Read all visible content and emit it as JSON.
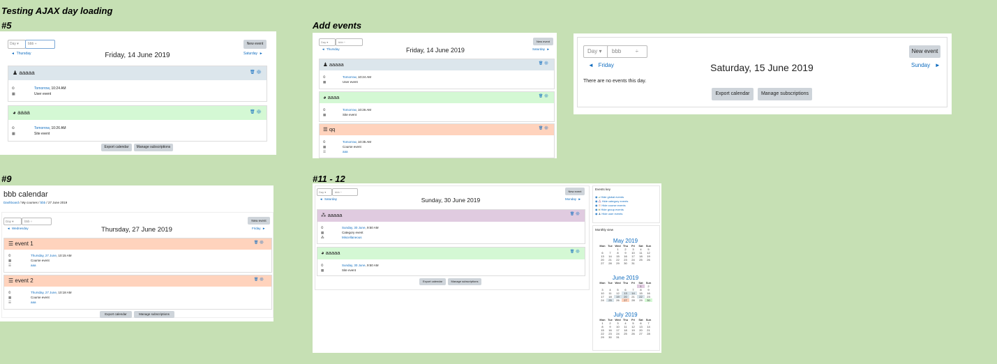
{
  "headers": {
    "testing": "Testing AJAX day loading",
    "n5": "#5",
    "add": "Add events",
    "n9": "#9",
    "n11": "#11 - 12"
  },
  "common": {
    "view": "Day",
    "course": "bbb",
    "new_event": "New event",
    "export": "Export calendar",
    "manage": "Manage subscriptions",
    "prev_arrow": "◄",
    "next_arrow": "►"
  },
  "p1": {
    "prev": "Thursday",
    "next": "Saturday",
    "date": "Friday, 14 June 2019",
    "events": [
      {
        "title": "aaaaa",
        "when_link": "Tomorrow",
        "when_time": ", 10:24 AM",
        "type": "User event"
      },
      {
        "title": "aaaa",
        "when_link": "Tomorrow",
        "when_time": ", 10:26 AM",
        "type": "Site event"
      }
    ]
  },
  "p2": {
    "prev": "Thursday",
    "next": "Saturday",
    "date": "Friday, 14 June 2019",
    "events": [
      {
        "title": "aaaaa",
        "when_link": "Tomorrow",
        "when_time": ", 10:24 AM",
        "type": "User event"
      },
      {
        "title": "aaaa",
        "when_link": "Tomorrow",
        "when_time": ", 10:26 AM",
        "type": "Site event"
      },
      {
        "title": "qq",
        "when_link": "Tomorrow",
        "when_time": ", 10:35 AM",
        "type": "Course event",
        "course": "aaa"
      }
    ]
  },
  "p3": {
    "prev": "Friday",
    "next": "Sunday",
    "date": "Saturday, 15 June 2019",
    "empty": "There are no events this day."
  },
  "p4": {
    "title": "bbb calendar",
    "crumbs": [
      "Dashboard",
      "/",
      "My courses",
      "/",
      "bbb",
      "/",
      "27 June 2019"
    ],
    "prev": "Wednesday",
    "next": "Friday",
    "date": "Thursday, 27 June 2019",
    "events": [
      {
        "title": "event 1",
        "when_link": "Thursday, 27 June",
        "when_time": ", 10:15 AM",
        "type": "Course event",
        "course": "aaa"
      },
      {
        "title": "event 2",
        "when_link": "Thursday, 27 June",
        "when_time": ", 10:18 AM",
        "type": "Course event",
        "course": "aaa"
      }
    ]
  },
  "p5": {
    "prev": "Saturday",
    "next": "Monday",
    "date": "Sunday, 30 June 2019",
    "events": [
      {
        "title": "aaaaa",
        "when_link": "Sunday, 30 June",
        "when_time": ", 9:50 AM",
        "type": "Category event",
        "category": "Miscellaneous"
      },
      {
        "title": "aaaaa",
        "when_link": "Sunday, 30 June",
        "when_time": ", 9:50 AM",
        "type": "Site event"
      }
    ],
    "key": {
      "title": "Events key",
      "items": [
        "Hide global events",
        "Hide category events",
        "Hide course events",
        "Hide group events",
        "Hide user events"
      ]
    },
    "monthly": {
      "title": "Monthly view",
      "days": [
        "Mon",
        "Tue",
        "Wed",
        "Thu",
        "Fri",
        "Sat",
        "Sun"
      ],
      "months": [
        {
          "name": "May 2019",
          "rows": [
            [
              "",
              "",
              "1",
              "2",
              "3",
              "4",
              "5"
            ],
            [
              "6",
              "7",
              "8",
              "9",
              "10",
              "11",
              "12"
            ],
            [
              "13",
              "14",
              "15",
              "16",
              "17",
              "18",
              "19"
            ],
            [
              "20",
              "21",
              "22",
              "23",
              "24",
              "25",
              "26"
            ],
            [
              "27",
              "28",
              "29",
              "30",
              "31",
              "",
              ""
            ]
          ]
        },
        {
          "name": "June 2019",
          "rows": [
            [
              "",
              "",
              "",
              "",
              "",
              "1",
              "2"
            ],
            [
              "3",
              "4",
              "5",
              "6",
              "7",
              "8",
              "9"
            ],
            [
              "10",
              "11",
              "12",
              "13",
              "14",
              "15",
              "16"
            ],
            [
              "17",
              "18",
              "19",
              "20",
              "21",
              "22",
              "23"
            ],
            [
              "24",
              "25",
              "26",
              "27",
              "28",
              "29",
              "30"
            ]
          ]
        },
        {
          "name": "July 2019",
          "rows": [
            [
              "1",
              "2",
              "3",
              "4",
              "5",
              "6",
              "7"
            ],
            [
              "8",
              "9",
              "10",
              "11",
              "12",
              "13",
              "14"
            ],
            [
              "15",
              "16",
              "17",
              "18",
              "19",
              "20",
              "21"
            ],
            [
              "22",
              "23",
              "24",
              "25",
              "26",
              "27",
              "28"
            ],
            [
              "29",
              "30",
              "31",
              "",
              "",
              "",
              ""
            ]
          ]
        }
      ]
    }
  }
}
